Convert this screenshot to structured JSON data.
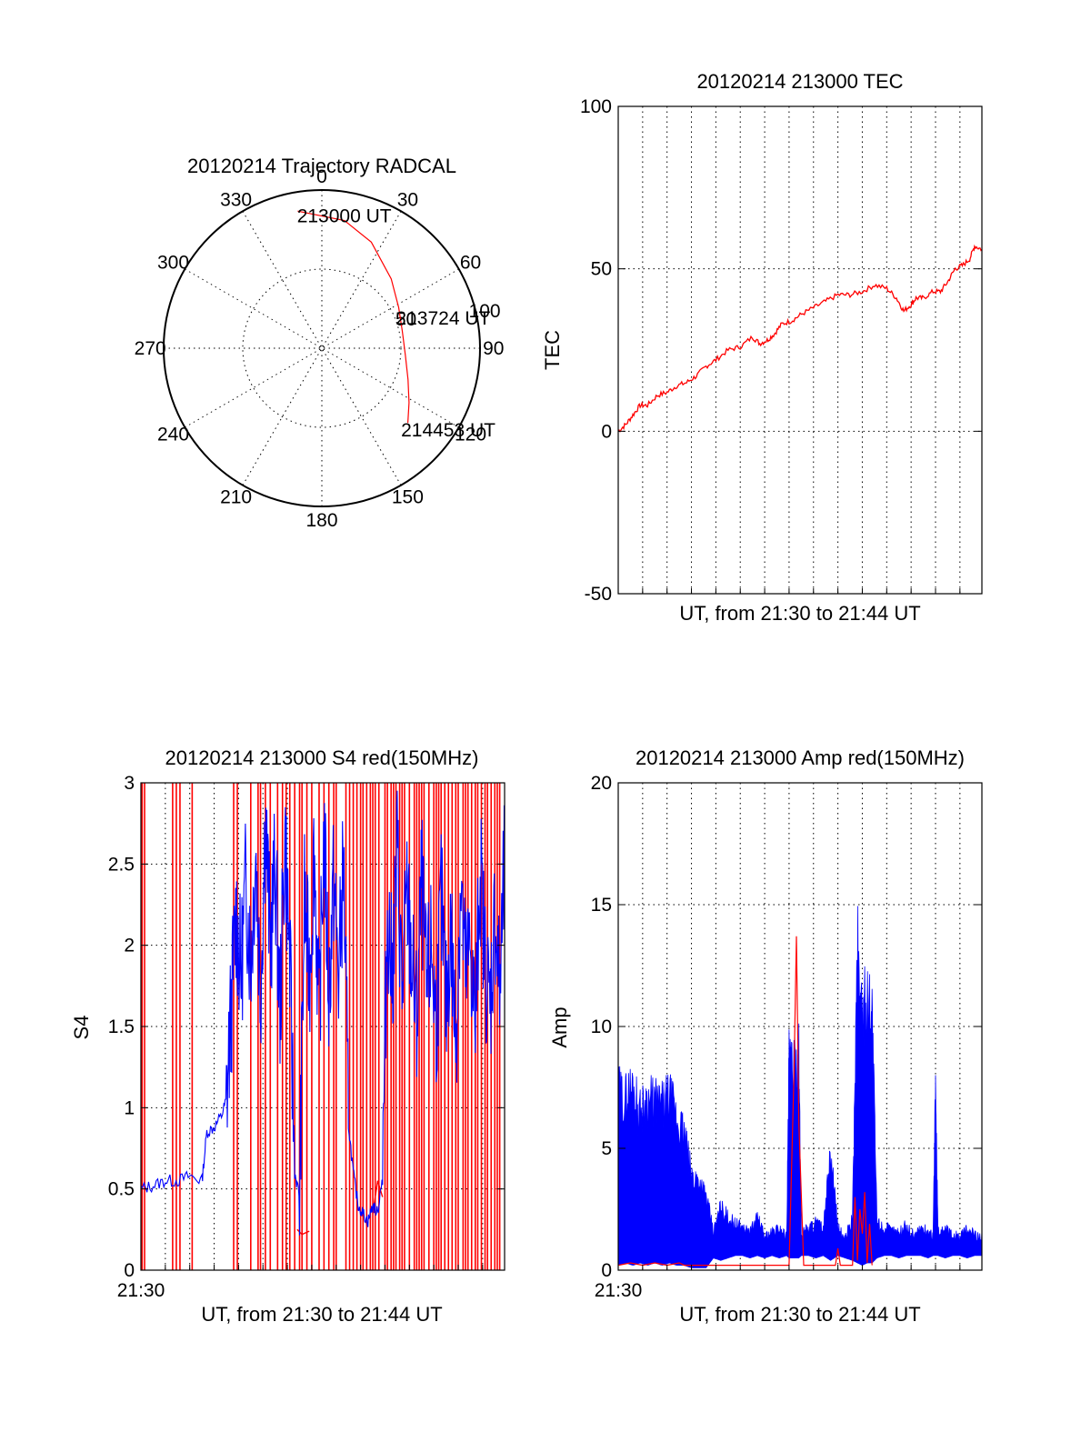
{
  "chart_data": [
    {
      "id": "trajectory",
      "type": "polar",
      "title": "20120214 Trajectory RADCAL",
      "angle_labels": [
        "0",
        "30",
        "60",
        "90",
        "120",
        "150",
        "180",
        "210",
        "240",
        "270",
        "300",
        "330"
      ],
      "ring_labels": [
        "50",
        "100"
      ],
      "rlim": [
        0,
        100
      ],
      "grid": true,
      "series": [
        {
          "color": "#ff0000",
          "points": [
            {
              "az": 350,
              "r": 88
            },
            {
              "az": 10,
              "r": 82
            },
            {
              "az": 25,
              "r": 74
            },
            {
              "az": 45,
              "r": 62
            },
            {
              "az": 62,
              "r": 55
            },
            {
              "az": 78,
              "r": 52
            },
            {
              "az": 95,
              "r": 53
            },
            {
              "az": 110,
              "r": 58
            },
            {
              "az": 122,
              "r": 65
            },
            {
              "az": 131,
              "r": 72
            }
          ]
        }
      ],
      "annotations": [
        {
          "text": "213000 UT",
          "az": 352,
          "r": 88
        },
        {
          "text": "213724 UT",
          "az": 66,
          "r": 55
        },
        {
          "text": "214453 UT",
          "az": 132,
          "r": 72
        }
      ]
    },
    {
      "id": "tec",
      "type": "line",
      "title": "20120214 213000 TEC",
      "xlabel": "UT, from 21:30 to 21:44 UT",
      "ylabel": "TEC",
      "xlim_minutes": [
        0,
        14.9
      ],
      "ylim": [
        -50,
        100
      ],
      "yticks": [
        "-50",
        "0",
        "50",
        "100"
      ],
      "grid": true,
      "series": [
        {
          "color": "#ff0000",
          "x_minutes": [
            0,
            0.3,
            0.6,
            0.9,
            1.2,
            1.6,
            2.0,
            2.4,
            2.8,
            3.2,
            3.6,
            4.0,
            4.5,
            5.0,
            5.5,
            5.8,
            6.1,
            6.4,
            6.7,
            7.1,
            7.5,
            8.0,
            8.5,
            9.0,
            9.5,
            10.0,
            10.5,
            11.0,
            11.4,
            11.7,
            12.0,
            12.2,
            12.5,
            12.9,
            13.2,
            13.5,
            13.8,
            14.1,
            14.4,
            14.6,
            14.9
          ],
          "values": [
            0,
            2,
            5,
            8,
            8,
            11,
            12,
            14,
            15,
            17,
            20,
            22,
            25,
            26,
            29,
            27,
            28,
            30,
            33,
            34,
            36,
            38,
            40,
            42,
            42,
            43,
            45,
            44,
            41,
            37,
            39,
            41,
            41,
            43,
            43,
            46,
            50,
            51,
            53,
            57,
            56
          ]
        }
      ]
    },
    {
      "id": "s4",
      "type": "line",
      "title": "20120214 213000 S4 red(150MHz)",
      "xlabel": "UT, from 21:30 to 21:44 UT",
      "ylabel": "S4",
      "first_xtick": "21:30",
      "xlim_minutes": [
        0,
        14.9
      ],
      "ylim": [
        0,
        3
      ],
      "yticks": [
        "0",
        "0.5",
        "1",
        "1.5",
        "2",
        "2.5",
        "3"
      ],
      "grid": true,
      "series": [
        {
          "color": "#ff0000",
          "spikes_x_minutes": [
            0.05,
            0.15,
            1.3,
            1.45,
            1.6,
            2.1,
            3.8,
            3.95,
            4.5,
            4.8,
            4.9,
            5.1,
            5.3,
            5.6,
            5.8,
            5.95,
            6.1,
            6.3,
            6.5,
            6.6,
            6.8,
            7.0,
            7.3,
            7.5,
            7.7,
            7.9,
            8.0,
            8.4,
            8.55,
            8.7,
            8.85,
            9.0,
            9.1,
            9.25,
            9.4,
            9.5,
            9.6,
            9.75,
            10.0,
            10.1,
            10.25,
            10.35,
            10.45,
            10.6,
            10.7,
            10.8,
            11.0,
            11.2,
            11.3,
            11.4,
            11.5,
            11.6,
            11.8,
            12.0,
            12.1,
            12.2,
            12.3,
            12.45,
            12.6,
            12.75,
            12.9,
            13.0,
            13.2,
            13.3,
            13.4,
            13.55,
            13.7,
            13.8,
            13.95,
            14.1,
            14.2,
            14.35,
            14.5,
            14.6,
            14.7
          ],
          "low_segments": [
            {
              "x_minutes": [
                6.4,
                6.6,
                6.9
              ],
              "values": [
                0.25,
                0.22,
                0.24
              ]
            },
            {
              "x_minutes": [
                9.5,
                9.7,
                9.9
              ],
              "values": [
                0.35,
                0.55,
                0.45
              ]
            }
          ]
        },
        {
          "color": "#0000ff",
          "x_minutes": [
            0,
            0.5,
            1.0,
            1.5,
            2.0,
            2.5,
            2.7,
            3.0,
            3.3,
            3.5,
            3.7,
            3.9,
            4.1,
            4.3,
            4.5,
            4.7,
            4.9,
            5.1,
            5.3,
            5.5,
            5.7,
            5.9,
            6.1,
            6.3,
            6.5,
            6.7,
            6.9,
            7.1,
            7.3,
            7.5,
            7.7,
            7.9,
            8.1,
            8.3,
            8.5,
            8.7,
            8.9,
            9.1,
            9.3,
            9.5,
            9.7,
            9.9,
            10.1,
            10.3,
            10.5,
            10.7,
            10.9,
            11.1,
            11.3,
            11.5,
            11.7,
            11.9,
            12.1,
            12.3,
            12.5,
            12.7,
            12.9,
            13.1,
            13.3,
            13.5,
            13.7,
            13.9,
            14.1,
            14.3,
            14.5,
            14.7,
            14.9
          ],
          "values": [
            0.5,
            0.52,
            0.55,
            0.55,
            0.58,
            0.55,
            0.85,
            0.88,
            0.95,
            1.05,
            1.6,
            2.2,
            1.8,
            2.4,
            1.9,
            2.6,
            1.7,
            2.8,
            2.0,
            2.5,
            1.6,
            2.7,
            1.9,
            0.6,
            0.45,
            2.3,
            1.8,
            2.6,
            1.5,
            2.7,
            1.7,
            2.4,
            1.8,
            2.5,
            0.9,
            0.6,
            0.4,
            0.35,
            0.3,
            0.4,
            0.35,
            0.6,
            2.2,
            1.8,
            2.6,
            1.7,
            2.3,
            1.9,
            1.5,
            2.4,
            1.7,
            2.0,
            1.5,
            2.3,
            1.6,
            2.1,
            1.4,
            2.4,
            1.8,
            2.0,
            1.5,
            2.5,
            1.9,
            1.6,
            2.2,
            1.7,
            2.5
          ]
        }
      ]
    },
    {
      "id": "amp",
      "type": "line",
      "title": "20120214 213000 Amp red(150MHz)",
      "xlabel": "UT, from 21:30 to 21:44 UT",
      "ylabel": "Amp",
      "first_xtick": "21:30",
      "xlim_minutes": [
        0,
        14.9
      ],
      "ylim": [
        0,
        20
      ],
      "yticks": [
        "0",
        "5",
        "10",
        "15",
        "20"
      ],
      "grid": true,
      "series": [
        {
          "color": "#ff0000",
          "x_minutes": [
            0,
            0.5,
            1.0,
            1.5,
            2.0,
            2.5,
            2.7,
            7.0,
            7.2,
            7.3,
            7.4,
            7.6,
            8.9,
            9.0,
            9.1,
            9.6,
            9.7,
            9.8,
            9.9,
            10.0,
            10.1,
            10.2,
            10.3,
            10.4
          ],
          "values": [
            0.2,
            0.3,
            0.2,
            0.3,
            0.2,
            0.3,
            0.2,
            0.2,
            8.0,
            13.7,
            6.0,
            0.2,
            0.2,
            0.9,
            0.2,
            0.2,
            3.0,
            0.4,
            2.5,
            1.5,
            3.2,
            0.3,
            1.9,
            0.2
          ]
        },
        {
          "color": "#0000ff",
          "envelope_x_minutes": [
            0,
            0.3,
            0.6,
            0.9,
            1.2,
            1.5,
            1.8,
            2.1,
            2.4,
            2.7,
            3.0,
            3.3,
            3.6,
            3.9,
            4.2,
            4.5,
            4.8,
            5.1,
            5.4,
            5.7,
            6.0,
            6.3,
            6.6,
            6.9,
            7.0,
            7.2,
            7.4,
            7.5,
            7.8,
            8.1,
            8.4,
            8.7,
            9.0,
            9.3,
            9.6,
            9.8,
            10.0,
            10.2,
            10.4,
            10.6,
            10.9,
            11.2,
            11.5,
            11.8,
            12.1,
            12.4,
            12.7,
            12.9,
            13.0,
            13.1,
            13.4,
            13.7,
            14.0,
            14.3,
            14.6,
            14.9
          ],
          "envelope_max": [
            8.5,
            8.2,
            8.8,
            7.5,
            8.2,
            8.0,
            7.8,
            8.3,
            7.2,
            6.5,
            4.5,
            4.3,
            3.5,
            1.8,
            3.0,
            2.5,
            2.2,
            2.0,
            1.8,
            2.5,
            1.6,
            1.8,
            2.0,
            1.6,
            10.0,
            9.5,
            10.2,
            1.8,
            2.0,
            2.3,
            1.9,
            5.5,
            2.0,
            1.5,
            2.5,
            15.6,
            12.0,
            13.0,
            12.5,
            2.3,
            2.0,
            1.9,
            1.8,
            2.1,
            1.7,
            2.0,
            1.8,
            1.6,
            8.7,
            1.8,
            2.0,
            1.7,
            1.6,
            1.9,
            1.7,
            1.6
          ],
          "envelope_min": [
            0.2,
            0.3,
            0.2,
            0.3,
            0.2,
            0.3,
            0.2,
            0.3,
            0.2,
            0.2,
            0.1,
            0.1,
            0.1,
            0.5,
            0.4,
            0.5,
            0.6,
            0.6,
            0.5,
            0.6,
            0.5,
            0.6,
            0.5,
            0.6,
            0.5,
            0.5,
            0.5,
            0.6,
            0.6,
            0.5,
            0.6,
            0.4,
            0.6,
            0.5,
            0.4,
            0.3,
            0.2,
            0.3,
            0.3,
            0.5,
            0.6,
            0.6,
            0.5,
            0.6,
            0.6,
            0.6,
            0.5,
            0.6,
            0.6,
            0.6,
            0.5,
            0.6,
            0.6,
            0.5,
            0.6,
            0.6
          ]
        }
      ]
    }
  ]
}
